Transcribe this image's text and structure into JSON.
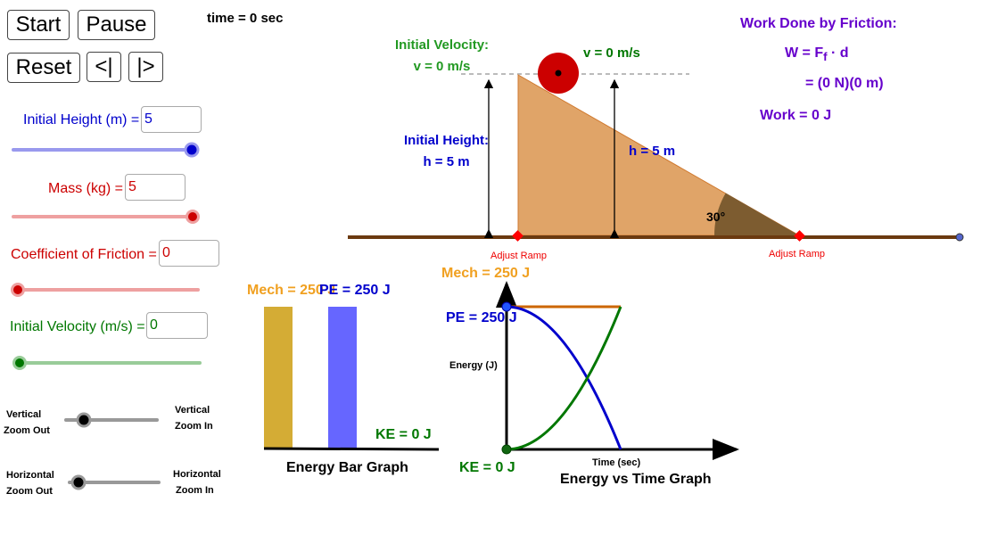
{
  "buttons": {
    "start": "Start",
    "pause": "Pause",
    "reset": "Reset",
    "step_back": "<|",
    "step_forward": "|>"
  },
  "time_label": "time = 0 sec",
  "controls": {
    "initial_height": {
      "label": "Initial Height (m) =",
      "value": "5",
      "slider_fraction": 1.0,
      "color": "#0000cc"
    },
    "mass": {
      "label": "Mass (kg) =",
      "value": "5",
      "slider_fraction": 1.0,
      "color": "#cc0000"
    },
    "friction": {
      "label": "Coefficient of Friction =",
      "value": "0",
      "slider_fraction": 0.0,
      "color": "#cc0000"
    },
    "initial_velocity": {
      "label": "Initial Velocity (m/s) =",
      "value": "0",
      "slider_fraction": 0.0,
      "color": "#007700"
    }
  },
  "zoom": {
    "vertical_out": [
      "Vertical",
      "Zoom Out"
    ],
    "vertical_in": [
      "Vertical",
      "Zoom In"
    ],
    "horizontal_out": [
      "Horizontal",
      "Zoom Out"
    ],
    "horizontal_in": [
      "Horizontal",
      "Zoom In"
    ]
  },
  "scene": {
    "initial_velocity_title": "Initial Velocity:",
    "initial_velocity_value": "v = 0 m/s",
    "current_velocity": "v = 0 m/s",
    "initial_height_title": "Initial Height:",
    "initial_height_value": "h = 5 m",
    "current_height": "h = 5 m",
    "angle": "30°",
    "adjust_ramp_left": "Adjust Ramp",
    "adjust_ramp_right": "Adjust Ramp"
  },
  "friction_work": {
    "title": "Work Done by Friction:",
    "formula_lhs": "W = F",
    "formula_sub": "f",
    "formula_rhs": " · d",
    "substitution": "= (0 N)(0 m)",
    "result": "Work = 0 J"
  },
  "bar_graph": {
    "title": "Energy Bar Graph",
    "mech_label": "Mech = 250 J",
    "pe_label": "PE = 250 J",
    "ke_label": "KE = 0 J"
  },
  "time_graph": {
    "title": "Energy vs Time Graph",
    "y_axis": "Energy (J)",
    "x_axis": "Time (sec)",
    "mech_label": "Mech =  250 J",
    "pe_label": "PE = 250 J",
    "ke_label": "KE = 0  J"
  },
  "chart_data": {
    "type": "bar",
    "categories": [
      "Mech",
      "PE",
      "KE"
    ],
    "values": [
      250,
      250,
      0
    ]
  },
  "colors": {
    "mech": "#f0a020",
    "pe": "#0000cc",
    "ke": "#007700",
    "work": "#6600cc",
    "ramp": "#e0a468",
    "ball": "#cc0000"
  }
}
